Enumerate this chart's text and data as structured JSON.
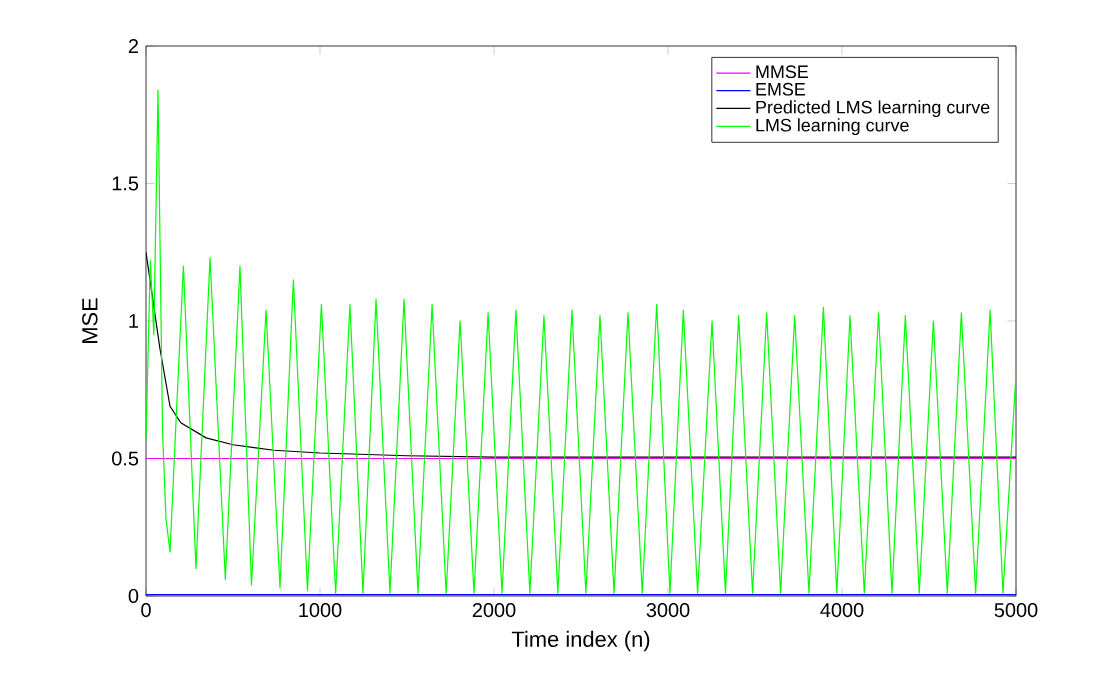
{
  "chart_data": {
    "type": "line",
    "xlabel": "Time index (n)",
    "ylabel": "MSE",
    "xlim": [
      0,
      5000
    ],
    "ylim": [
      0,
      2
    ],
    "xticks": [
      0,
      1000,
      2000,
      3000,
      4000,
      5000
    ],
    "yticks": [
      0,
      0.5,
      1,
      1.5,
      2
    ],
    "grid": false,
    "legend": "top right",
    "line_style": "solid",
    "marker": "none",
    "series": [
      {
        "name": "MMSE",
        "color": "#ff00ff",
        "x": [
          0,
          5000
        ],
        "values": [
          0.5,
          0.5
        ]
      },
      {
        "name": "EMSE",
        "color": "#0000ff",
        "x": [
          0,
          5000
        ],
        "values": [
          0.005,
          0.005
        ]
      },
      {
        "name": "Predicted LMS learning curve",
        "color": "#000000",
        "x": [
          0,
          80,
          138,
          200,
          345,
          500,
          736,
          1000,
          1500,
          2000,
          3000,
          5000
        ],
        "values": [
          1.25,
          0.9,
          0.69,
          0.63,
          0.575,
          0.55,
          0.53,
          0.52,
          0.51,
          0.505,
          0.505,
          0.505
        ]
      },
      {
        "name": "LMS learning curve",
        "color": "#00ff00",
        "x": [
          0,
          25,
          45,
          69,
          95,
          115,
          138,
          170,
          215,
          287,
          368,
          456,
          540,
          606,
          690,
          770,
          847,
          928,
          1008,
          1090,
          1172,
          1247,
          1322,
          1402,
          1483,
          1563,
          1644,
          1725,
          1805,
          1885,
          1966,
          2046,
          2126,
          2206,
          2287,
          2367,
          2448,
          2528,
          2609,
          2690,
          2770,
          2852,
          2935,
          3011,
          3088,
          3170,
          3253,
          3330,
          3406,
          3486,
          3567,
          3647,
          3728,
          3810,
          3893,
          3970,
          4046,
          4128,
          4210,
          4287,
          4364,
          4444,
          4525,
          4605,
          4686,
          4768,
          4851,
          4925,
          5000
        ],
        "values": [
          0.57,
          1.22,
          0.95,
          1.84,
          0.6,
          0.28,
          0.16,
          0.6,
          1.2,
          0.1,
          1.23,
          0.06,
          1.2,
          0.04,
          1.04,
          0.03,
          1.15,
          0.02,
          1.06,
          0.01,
          1.06,
          0.01,
          1.08,
          0.01,
          1.08,
          0.01,
          1.06,
          0.01,
          1.0,
          0.01,
          1.03,
          0.01,
          1.04,
          0.01,
          1.02,
          0.01,
          1.04,
          0.01,
          1.02,
          0.01,
          1.03,
          0.01,
          1.06,
          0.01,
          1.04,
          0.01,
          1.0,
          0.01,
          1.02,
          0.01,
          1.03,
          0.01,
          1.02,
          0.01,
          1.05,
          0.01,
          1.02,
          0.01,
          1.03,
          0.01,
          1.02,
          0.01,
          1.0,
          0.01,
          1.03,
          0.01,
          1.04,
          0.01,
          0.81
        ]
      }
    ]
  }
}
